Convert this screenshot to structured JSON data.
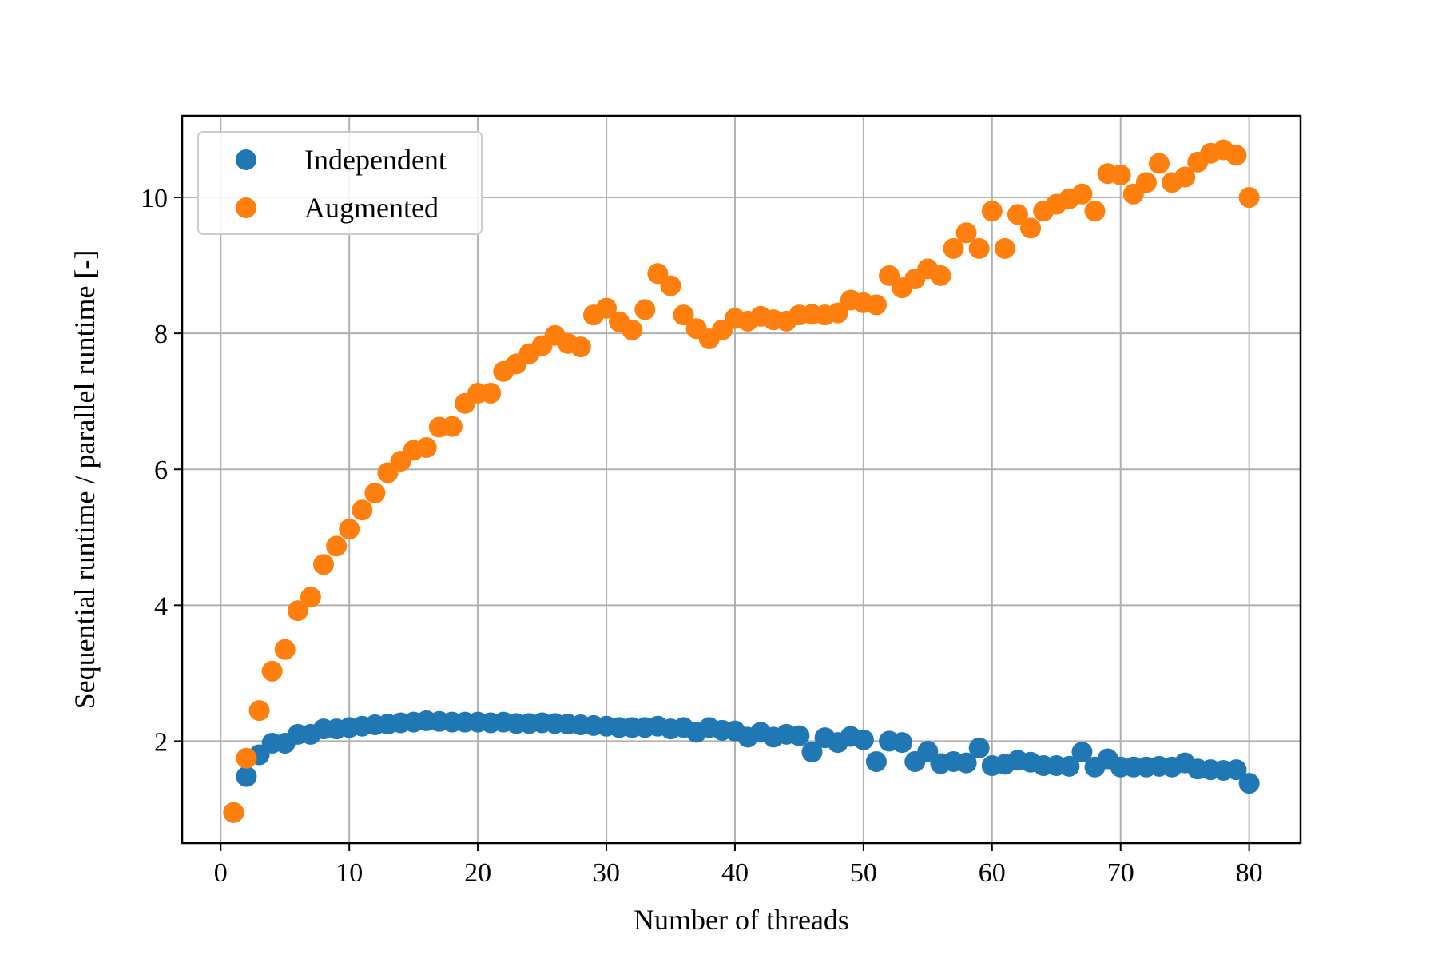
{
  "chart_data": {
    "type": "scatter",
    "title": "",
    "xlabel": "Number of threads",
    "ylabel": "Sequential runtime / parallel runtime [-]",
    "xlim": [
      -3,
      84
    ],
    "ylim": [
      0.5,
      11.2
    ],
    "xticks": [
      0,
      10,
      20,
      30,
      40,
      50,
      60,
      70,
      80
    ],
    "yticks": [
      2,
      4,
      6,
      8,
      10
    ],
    "grid": true,
    "legend_position": "top-left",
    "series": [
      {
        "name": "Independent",
        "color": "#1f77b4",
        "x": [
          1,
          2,
          3,
          4,
          5,
          6,
          7,
          8,
          9,
          10,
          11,
          12,
          13,
          14,
          15,
          16,
          17,
          18,
          19,
          20,
          21,
          22,
          23,
          24,
          25,
          26,
          27,
          28,
          29,
          30,
          31,
          32,
          33,
          34,
          35,
          36,
          37,
          38,
          39,
          40,
          41,
          42,
          43,
          44,
          45,
          46,
          47,
          48,
          49,
          50,
          51,
          52,
          53,
          54,
          55,
          56,
          57,
          58,
          59,
          60,
          61,
          62,
          63,
          64,
          65,
          66,
          67,
          68,
          69,
          70,
          71,
          72,
          73,
          74,
          75,
          76,
          77,
          78,
          79,
          80
        ],
        "y": [
          0.95,
          1.48,
          1.8,
          1.97,
          1.97,
          2.1,
          2.1,
          2.18,
          2.18,
          2.2,
          2.22,
          2.24,
          2.25,
          2.27,
          2.28,
          2.3,
          2.29,
          2.28,
          2.28,
          2.28,
          2.27,
          2.28,
          2.26,
          2.26,
          2.27,
          2.26,
          2.25,
          2.24,
          2.23,
          2.22,
          2.2,
          2.2,
          2.2,
          2.22,
          2.18,
          2.2,
          2.13,
          2.2,
          2.16,
          2.15,
          2.06,
          2.13,
          2.06,
          2.1,
          2.08,
          1.84,
          2.05,
          1.98,
          2.07,
          2.02,
          1.7,
          2.0,
          1.98,
          1.7,
          1.85,
          1.67,
          1.7,
          1.68,
          1.9,
          1.64,
          1.66,
          1.72,
          1.69,
          1.64,
          1.64,
          1.63,
          1.84,
          1.62,
          1.74,
          1.62,
          1.62,
          1.62,
          1.63,
          1.62,
          1.68,
          1.59,
          1.58,
          1.57,
          1.58,
          1.38
        ]
      },
      {
        "name": "Augmented",
        "color": "#ff7f0e",
        "x": [
          1,
          2,
          3,
          4,
          5,
          6,
          7,
          8,
          9,
          10,
          11,
          12,
          13,
          14,
          15,
          16,
          17,
          18,
          19,
          20,
          21,
          22,
          23,
          24,
          25,
          26,
          27,
          28,
          29,
          30,
          31,
          32,
          33,
          34,
          35,
          36,
          37,
          38,
          39,
          40,
          41,
          42,
          43,
          44,
          45,
          46,
          47,
          48,
          49,
          50,
          51,
          52,
          53,
          54,
          55,
          56,
          57,
          58,
          59,
          60,
          61,
          62,
          63,
          64,
          65,
          66,
          67,
          68,
          69,
          70,
          71,
          72,
          73,
          74,
          75,
          76,
          77,
          78,
          79,
          80
        ],
        "y": [
          0.95,
          1.75,
          2.45,
          3.03,
          3.35,
          3.92,
          4.12,
          4.6,
          4.87,
          5.12,
          5.4,
          5.65,
          5.95,
          6.12,
          6.28,
          6.32,
          6.62,
          6.63,
          6.97,
          7.12,
          7.12,
          7.44,
          7.55,
          7.7,
          7.82,
          7.97,
          7.85,
          7.8,
          8.27,
          8.37,
          8.17,
          8.05,
          8.35,
          8.88,
          8.7,
          8.27,
          8.07,
          7.92,
          8.05,
          8.22,
          8.18,
          8.25,
          8.2,
          8.18,
          8.27,
          8.28,
          8.27,
          8.3,
          8.49,
          8.45,
          8.42,
          8.85,
          8.67,
          8.8,
          8.95,
          8.85,
          9.25,
          9.48,
          9.25,
          9.8,
          9.25,
          9.75,
          9.55,
          9.8,
          9.9,
          9.98,
          10.05,
          9.8,
          10.35,
          10.33,
          10.05,
          10.22,
          10.5,
          10.22,
          10.3,
          10.52,
          10.65,
          10.7,
          10.62,
          10.0
        ]
      }
    ]
  }
}
